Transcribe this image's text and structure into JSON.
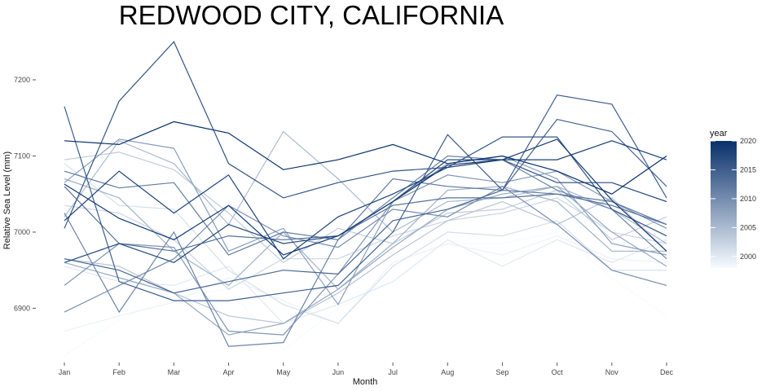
{
  "chart_data": {
    "type": "line",
    "title": "REDWOOD CITY, CALIFORNIA",
    "xlabel": "Month",
    "ylabel": "Relative Sea Level (mm)",
    "categories": [
      "Jan",
      "Feb",
      "Mar",
      "Apr",
      "May",
      "Jun",
      "Jul",
      "Aug",
      "Sep",
      "Oct",
      "Nov",
      "Dec"
    ],
    "y_ticks": [
      6900,
      7000,
      7100,
      7200
    ],
    "ylim": [
      6832,
      7262
    ],
    "grid": false,
    "legend": {
      "title": "year",
      "position": "right",
      "type": "colorbar",
      "min": 1998,
      "max": 2020,
      "ticks": [
        2000,
        2005,
        2010,
        2015,
        2020
      ],
      "color_low": "#f7fbff",
      "color_high": "#08306b"
    },
    "series": [
      {
        "year": 1998,
        "values": [
          6838,
          6885,
          6915,
          6925,
          6845,
          6900,
          6935,
          6985,
          6985,
          7000,
          6940,
          6890
        ]
      },
      {
        "year": 1999,
        "values": [
          6870,
          6890,
          6908,
          6940,
          6910,
          6880,
          6960,
          6985,
          6970,
          6995,
          6965,
          6960
        ]
      },
      {
        "year": 2000,
        "values": [
          6955,
          6935,
          6930,
          6955,
          6880,
          6905,
          6935,
          6990,
          6955,
          6990,
          6960,
          6990
        ]
      },
      {
        "year": 2001,
        "values": [
          7090,
          7035,
          7030,
          6950,
          6905,
          6880,
          6955,
          7000,
          6995,
          7015,
          6950,
          6950
        ]
      },
      {
        "year": 2002,
        "values": [
          7035,
          7025,
          6990,
          6925,
          6965,
          6965,
          6995,
          7015,
          7025,
          7045,
          7000,
          6985
        ]
      },
      {
        "year": 2003,
        "values": [
          7095,
          7105,
          7082,
          7025,
          6960,
          7005,
          6985,
          7025,
          7030,
          7055,
          6990,
          7020
        ]
      },
      {
        "year": 2004,
        "values": [
          6965,
          6955,
          6920,
          6890,
          6880,
          6920,
          6970,
          7015,
          7040,
          7010,
          7045,
          6975
        ]
      },
      {
        "year": 2005,
        "values": [
          7020,
          7120,
          7090,
          7010,
          7132,
          7070,
          7000,
          7040,
          7045,
          7060,
          7030,
          6985
        ]
      },
      {
        "year": 2006,
        "values": [
          7070,
          7045,
          6975,
          6930,
          7000,
          6925,
          6985,
          7055,
          7060,
          7040,
          6975,
          6975
        ]
      },
      {
        "year": 2007,
        "values": [
          6960,
          6940,
          6920,
          6865,
          6880,
          6925,
          6980,
          7030,
          7050,
          7060,
          7000,
          6955
        ]
      },
      {
        "year": 2008,
        "values": [
          7065,
          7122,
          7110,
          6975,
          7005,
          6905,
          7040,
          7090,
          7100,
          7070,
          6985,
          6970
        ]
      },
      {
        "year": 2009,
        "values": [
          6930,
          6985,
          6980,
          6870,
          6865,
          6945,
          7040,
          7075,
          7065,
          7080,
          7040,
          7005
        ]
      },
      {
        "year": 2010,
        "values": [
          6895,
          6930,
          6965,
          7035,
          6995,
          6980,
          7030,
          7020,
          7060,
          7010,
          6950,
          6930
        ]
      },
      {
        "year": 2011,
        "values": [
          7025,
          6895,
          7000,
          6850,
          6855,
          6990,
          7045,
          7100,
          7095,
          7055,
          7030,
          6965
        ]
      },
      {
        "year": 2012,
        "values": [
          7080,
          7058,
          7065,
          6970,
          7000,
          6990,
          7070,
          7060,
          7055,
          7050,
          7040,
          7010
        ]
      },
      {
        "year": 2013,
        "values": [
          7060,
          6985,
          6975,
          6995,
          6990,
          6995,
          7035,
          7045,
          7045,
          7050,
          7035,
          7010
        ]
      },
      {
        "year": 2014,
        "values": [
          6965,
          6950,
          6920,
          6935,
          6950,
          6945,
          7015,
          7030,
          7055,
          7148,
          7132,
          7060
        ]
      },
      {
        "year": 2015,
        "values": [
          7165,
          6935,
          6910,
          6910,
          6920,
          6930,
          7000,
          7128,
          7055,
          7180,
          7168,
          7045
        ]
      },
      {
        "year": 2016,
        "values": [
          7005,
          7172,
          7250,
          7090,
          7045,
          7065,
          7080,
          7085,
          7125,
          7125,
          7030,
          6995
        ]
      },
      {
        "year": 2017,
        "values": [
          6960,
          6985,
          6960,
          7010,
          6985,
          6995,
          7040,
          7095,
          7095,
          7065,
          7065,
          7040
        ]
      },
      {
        "year": 2018,
        "values": [
          7015,
          7080,
          7025,
          7075,
          6965,
          7020,
          7050,
          7085,
          7095,
          7095,
          7120,
          7095
        ]
      },
      {
        "year": 2019,
        "values": [
          7063,
          7018,
          6990,
          7035,
          6970,
          6995,
          7040,
          7088,
          7095,
          7122,
          7042,
          6975
        ]
      },
      {
        "year": 2020,
        "values": [
          7120,
          7115,
          7145,
          7130,
          7082,
          7095,
          7115,
          7090,
          7100,
          7080,
          7050,
          7100
        ]
      }
    ]
  }
}
